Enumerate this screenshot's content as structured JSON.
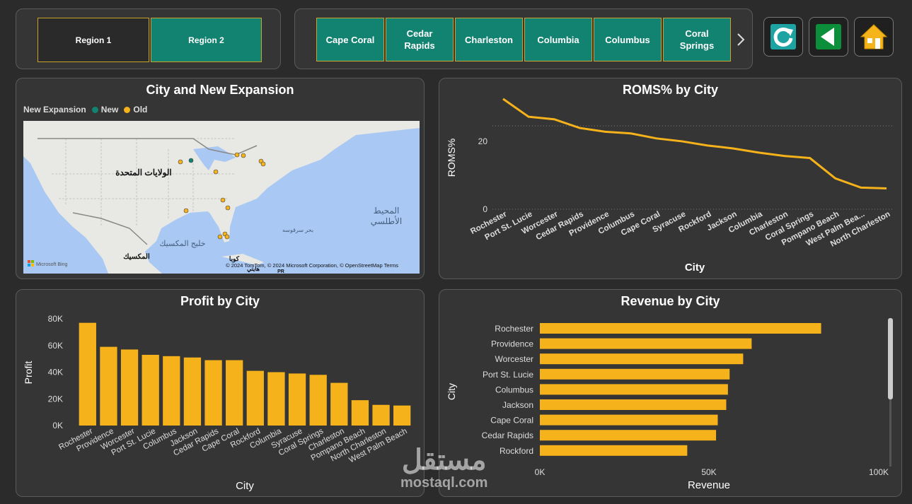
{
  "regions": {
    "region1_label": "Region 1",
    "region2_label": "Region 2"
  },
  "city_slicer": {
    "items": [
      "Cape Coral",
      "Cedar Rapids",
      "Charleston",
      "Columbia",
      "Columbus",
      "Coral Springs"
    ],
    "next_icon": "chevron-right-icon"
  },
  "toolbar": {
    "refresh_icon": "refresh-icon",
    "back_icon": "back-arrow-icon",
    "home_icon": "home-icon"
  },
  "map_panel": {
    "title": "City and New Expansion",
    "legend_title": "New Expansion",
    "legend_new": "New",
    "legend_old": "Old",
    "label_usa": "الولايات المتحدة",
    "label_gulf": "خليج المكسيك",
    "label_mexico": "المكسيك",
    "label_sargasso": "بحر سرقوسه",
    "label_atlantic_1": "المحيط",
    "label_atlantic_2": "الأطلسي",
    "label_cuba": "كوبا",
    "label_haiti": "هايتي",
    "label_pr": "PR",
    "bing_label": "Microsoft Bing",
    "copyright": "© 2024 TomTom, © 2024 Microsoft Corporation, © OpenStreetMap Terms",
    "colors": {
      "new": "#128271",
      "old": "#f5b21b",
      "water": "#a9c8f3",
      "land": "#e8e8e4"
    }
  },
  "roms_chart": {
    "title": "ROMS% by City",
    "xlabel": "City",
    "ylabel": "ROMS%",
    "y_ticks": [
      "0",
      "20"
    ]
  },
  "profit_chart": {
    "title": "Profit by City",
    "xlabel": "City",
    "ylabel": "Profit",
    "y_ticks": [
      "0K",
      "20K",
      "40K",
      "60K",
      "80K"
    ]
  },
  "revenue_chart": {
    "title": "Revenue by City",
    "xlabel": "Revenue",
    "ylabel": "City",
    "x_ticks": [
      "0K",
      "50K",
      "100K"
    ]
  },
  "watermark": {
    "arabic": "مستقل",
    "latin": "mostaql.com"
  },
  "chart_data": [
    {
      "type": "line",
      "title": "ROMS% by City",
      "xlabel": "City",
      "ylabel": "ROMS%",
      "categories": [
        "Rochester",
        "Port St. Lucie",
        "Worcester",
        "Cedar Rapids",
        "Providence",
        "Columbus",
        "Cape Coral",
        "Syracuse",
        "Rockford",
        "Jackson",
        "Columbia",
        "Charleston",
        "Coral Springs",
        "Pompano Beach",
        "West Palm Bea...",
        "North Charleston"
      ],
      "values": [
        26.5,
        22.2,
        21.6,
        19.5,
        18.6,
        18.2,
        17.0,
        16.3,
        15.3,
        14.6,
        13.6,
        12.8,
        12.3,
        7.4,
        5.2,
        5.0
      ],
      "ylim": [
        0,
        28
      ],
      "color": "#f5b21b",
      "grid": true
    },
    {
      "type": "bar",
      "title": "Profit by City",
      "xlabel": "City",
      "ylabel": "Profit",
      "categories": [
        "Rochester",
        "Providence",
        "Worcester",
        "Port St. Lucie",
        "Columbus",
        "Jackson",
        "Cedar Rapids",
        "Cape Coral",
        "Rockford",
        "Columbia",
        "Syracuse",
        "Coral Springs",
        "Charleston",
        "Pompano Beach",
        "North Charleston",
        "West Palm Beach"
      ],
      "values": [
        77000,
        59000,
        57000,
        53000,
        52000,
        51000,
        49000,
        49000,
        41000,
        40000,
        39000,
        38000,
        32000,
        19000,
        15500,
        15000
      ],
      "ylim": [
        0,
        80000
      ],
      "color": "#f5b21b"
    },
    {
      "type": "bar",
      "orientation": "horizontal",
      "title": "Revenue by City",
      "xlabel": "Revenue",
      "ylabel": "City",
      "categories": [
        "Rochester",
        "Providence",
        "Worcester",
        "Port St. Lucie",
        "Columbus",
        "Jackson",
        "Cape Coral",
        "Cedar Rapids",
        "Rockford"
      ],
      "values": [
        83000,
        62500,
        60000,
        56000,
        55500,
        55000,
        52500,
        52000,
        43500
      ],
      "xlim": [
        0,
        100000
      ],
      "color": "#f5b21b"
    }
  ]
}
